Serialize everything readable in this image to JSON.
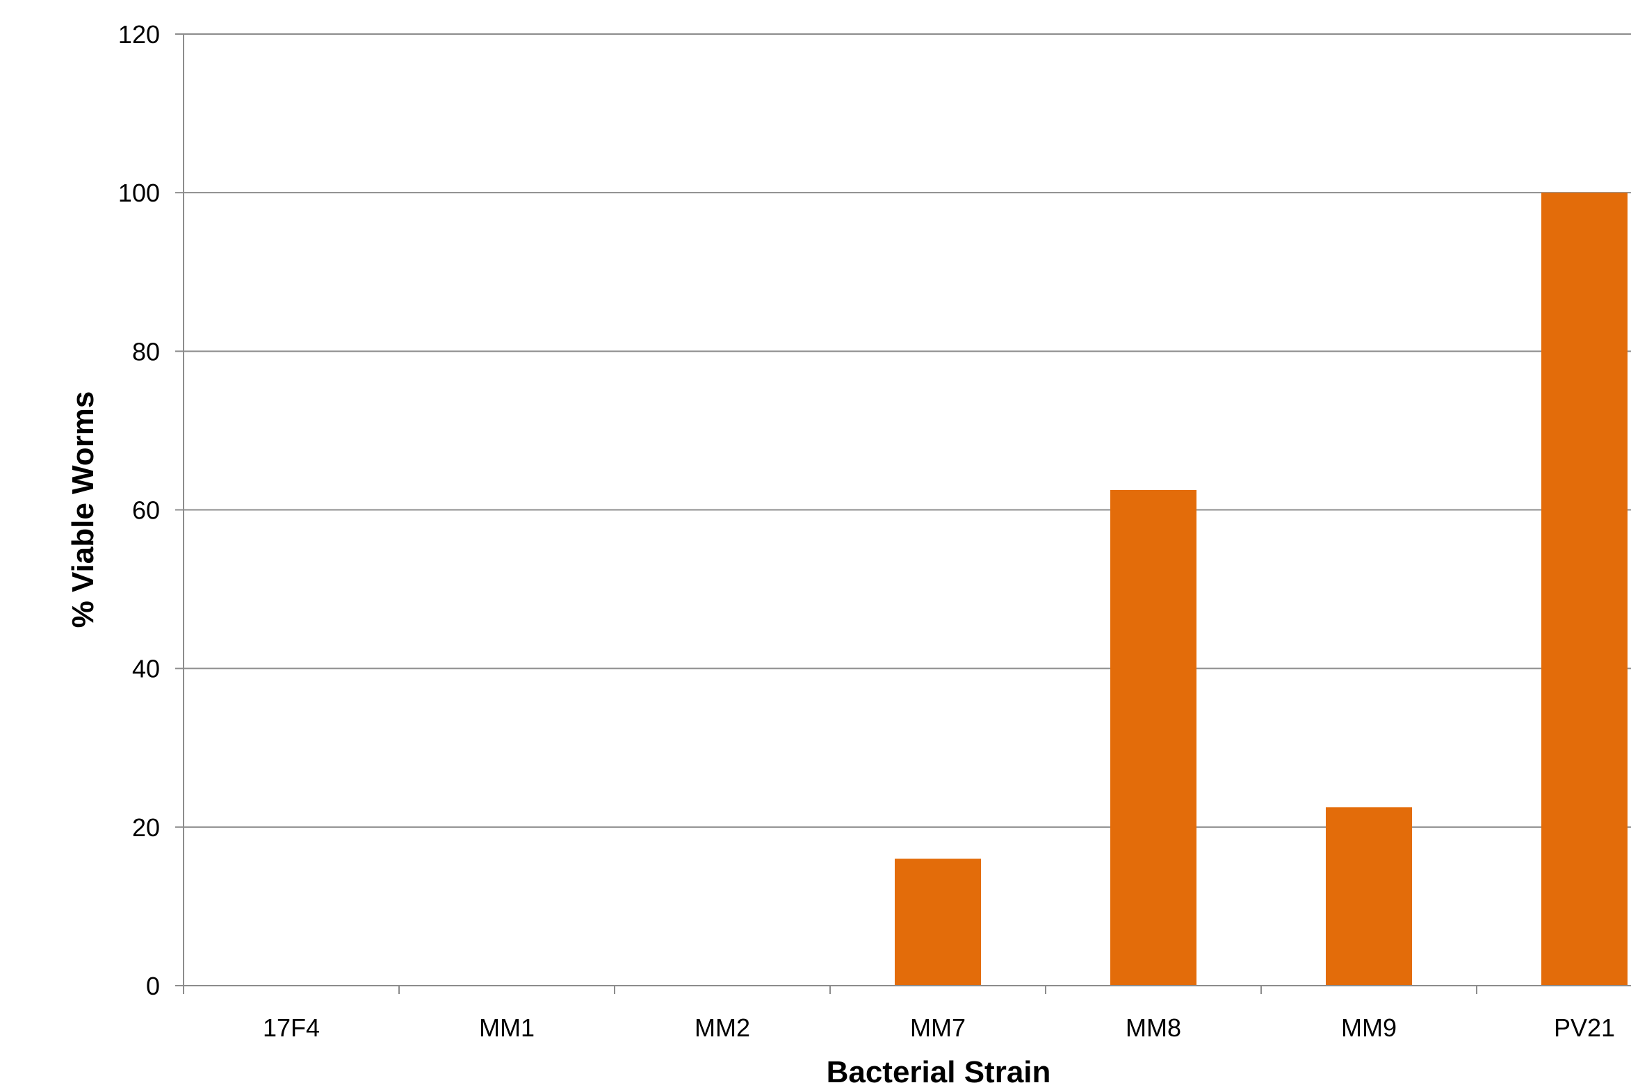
{
  "chart_data": {
    "type": "bar",
    "title": "",
    "xlabel": "Bacterial Strain",
    "ylabel": "% Viable Worms",
    "categories": [
      "17F4",
      "MM1",
      "MM2",
      "MM7",
      "MM8",
      "MM9",
      "PV21"
    ],
    "values": [
      0,
      0,
      0,
      16,
      62.5,
      22.5,
      100
    ],
    "ylim": [
      0,
      120
    ],
    "yticks": [
      "0",
      "20",
      "40",
      "60",
      "80",
      "100",
      "120"
    ],
    "grid": true,
    "legend": "none",
    "bar_color": "#E36C0A",
    "grid_color": "#8C8C8C"
  }
}
